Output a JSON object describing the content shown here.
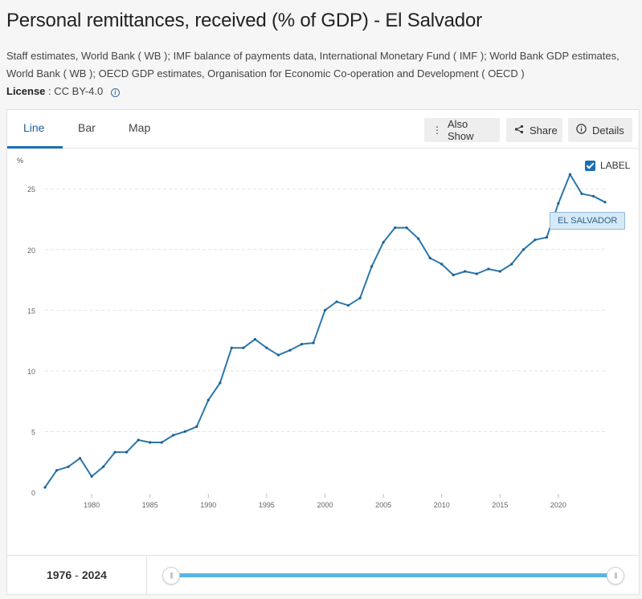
{
  "title": "Personal remittances, received (% of GDP) - El Salvador",
  "sources": "Staff estimates, World Bank ( WB ); IMF balance of payments data, International Monetary Fund ( IMF ); World Bank GDP estimates, World Bank ( WB ); OECD GDP estimates, Organisation for Economic Co-operation and Development ( OECD )",
  "license": {
    "label": "License",
    "value": ": CC BY-4.0"
  },
  "tabs": [
    {
      "label": "Line",
      "active": true
    },
    {
      "label": "Bar",
      "active": false
    },
    {
      "label": "Map",
      "active": false
    }
  ],
  "toolbar": {
    "also_show": "Also Show",
    "share": "Share",
    "details": "Details"
  },
  "label_toggle": {
    "label": "LABEL",
    "checked": true
  },
  "series_label": "EL SALVADOR",
  "range": {
    "start": "1976",
    "end": "2024",
    "separator": "-"
  },
  "chart_data": {
    "type": "line",
    "unit_label": "%",
    "color": "#2b78ad",
    "x": [
      1976,
      1977,
      1978,
      1979,
      1980,
      1981,
      1982,
      1983,
      1984,
      1985,
      1986,
      1987,
      1988,
      1989,
      1990,
      1991,
      1992,
      1993,
      1994,
      1995,
      1996,
      1997,
      1998,
      1999,
      2000,
      2001,
      2002,
      2003,
      2004,
      2005,
      2006,
      2007,
      2008,
      2009,
      2010,
      2011,
      2012,
      2013,
      2014,
      2015,
      2016,
      2017,
      2018,
      2019,
      2020,
      2021,
      2022,
      2023,
      2024
    ],
    "series": [
      {
        "name": "EL SALVADOR",
        "values": [
          0.4,
          1.8,
          2.1,
          2.8,
          1.3,
          2.1,
          3.3,
          3.3,
          4.3,
          4.1,
          4.1,
          4.7,
          5.0,
          5.4,
          7.6,
          9.0,
          11.9,
          11.9,
          12.6,
          11.9,
          11.3,
          11.7,
          12.2,
          12.3,
          15.0,
          15.7,
          15.4,
          16.0,
          18.6,
          20.6,
          21.8,
          21.8,
          20.9,
          19.3,
          18.8,
          17.9,
          18.2,
          18.0,
          18.4,
          18.2,
          18.8,
          20.0,
          20.8,
          21.0,
          23.8,
          26.2,
          24.6,
          24.4,
          23.9
        ]
      }
    ],
    "x_ticks": [
      1980,
      1985,
      1990,
      1995,
      2000,
      2005,
      2010,
      2015,
      2020
    ],
    "y_ticks": [
      0,
      5,
      10,
      15,
      20,
      25
    ],
    "xlim": [
      1976,
      2024
    ],
    "ylim": [
      0,
      27
    ],
    "grid": "horizontal-dashed"
  }
}
